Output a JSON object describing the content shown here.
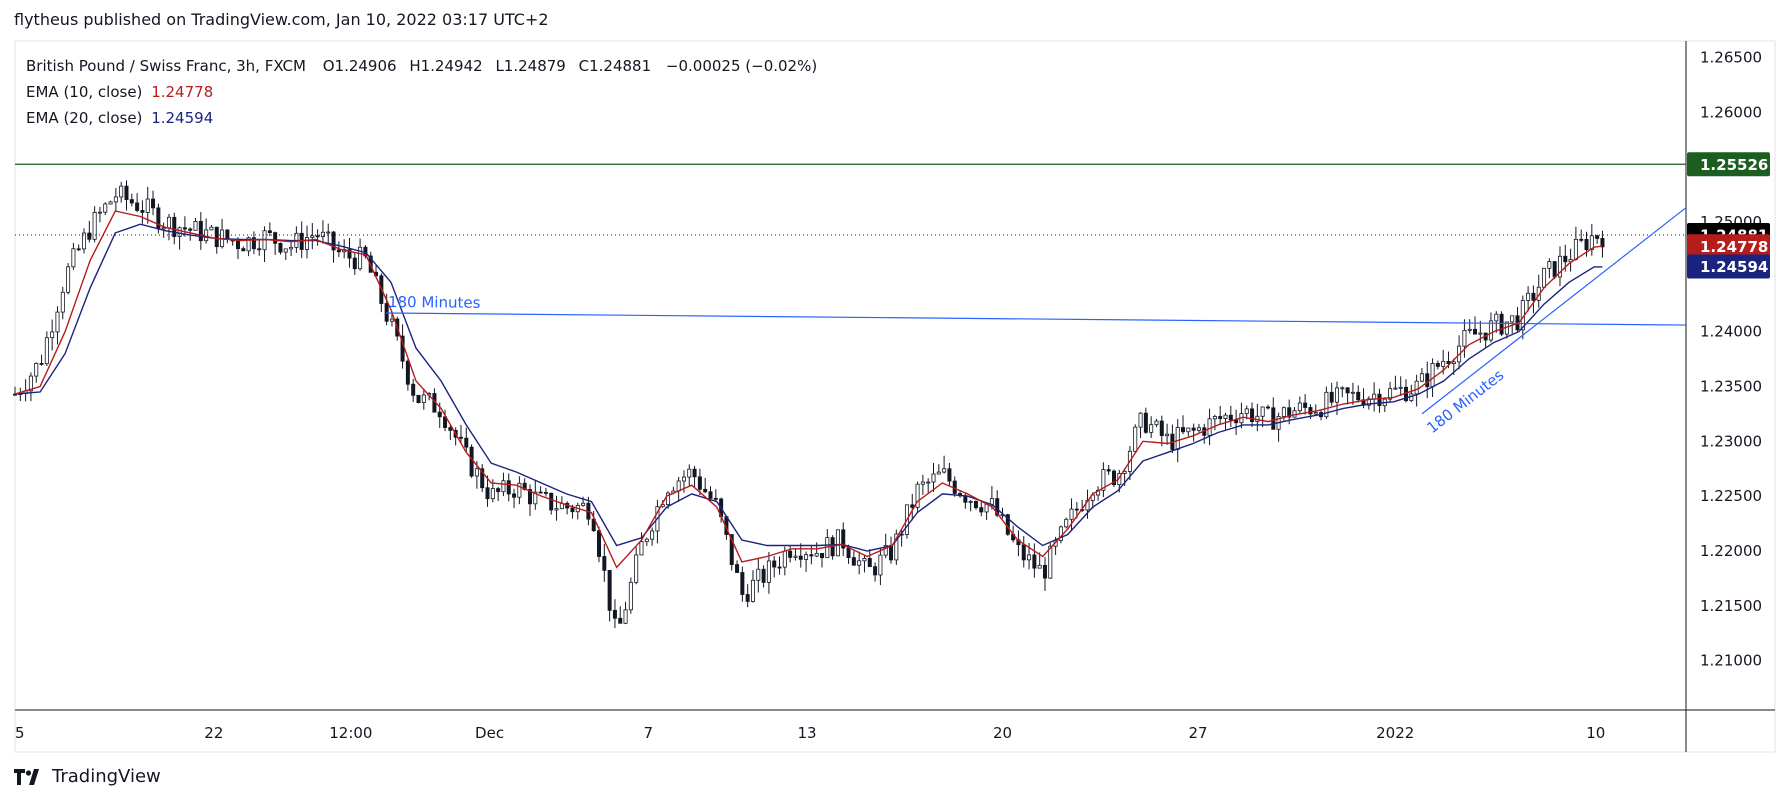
{
  "header": {
    "publisher_line": "flytheus published on TradingView.com, Jan 10, 2022 03:17 UTC+2"
  },
  "legend": {
    "symbol": "British Pound / Swiss Franc, 3h, FXCM",
    "ohlc": {
      "o_label": "O",
      "o": "1.24906",
      "h_label": "H",
      "h": "1.24942",
      "l_label": "L",
      "l": "1.24879",
      "c_label": "C",
      "c": "1.24881",
      "change": "−0.00025 (−0.02%)"
    },
    "ema10": {
      "label": "EMA (10, close)",
      "value": "1.24778"
    },
    "ema20": {
      "label": "EMA (20, close)",
      "value": "1.24594"
    }
  },
  "footer": {
    "brand": "TradingView"
  },
  "colors": {
    "candle": "#131722",
    "ema10": "#b71c1c",
    "ema20": "#1a237e",
    "trendline": "#2962ff",
    "resistance": "#1b5e20",
    "last_price_bg": "#000000"
  },
  "chart_data": {
    "type": "candlestick",
    "symbol": "GBPCHF",
    "timeframe": "3h",
    "ylim": [
      1.2055,
      1.2665
    ],
    "y_ticks": [
      "1.26500",
      "1.26000",
      "1.25000",
      "1.24000",
      "1.23500",
      "1.23000",
      "1.22500",
      "1.22000",
      "1.21500",
      "1.21000"
    ],
    "x_ticks": [
      {
        "label": "5",
        "pos": 0.0
      },
      {
        "label": "22",
        "pos": 0.119
      },
      {
        "label": "12:00",
        "pos": 0.201
      },
      {
        "label": "Dec",
        "pos": 0.284
      },
      {
        "label": "7",
        "pos": 0.379
      },
      {
        "label": "13",
        "pos": 0.474
      },
      {
        "label": "20",
        "pos": 0.591
      },
      {
        "label": "27",
        "pos": 0.708
      },
      {
        "label": "2022",
        "pos": 0.826
      },
      {
        "label": "10",
        "pos": 0.946
      }
    ],
    "price_badges": [
      {
        "name": "resistance",
        "value": "1.25526",
        "num": 1.25526,
        "color": "#1b5e20"
      },
      {
        "name": "last-close",
        "value": "1.24881",
        "num": 1.24881,
        "color": "#000000"
      },
      {
        "name": "ema10",
        "value": "1.24778",
        "num": 1.24778,
        "color": "#b71c1c"
      },
      {
        "name": "ema20",
        "value": "1.24594",
        "num": 1.24594,
        "color": "#1a237e"
      }
    ],
    "resistance_level": 1.25526,
    "last_close": 1.24881,
    "trend_lines": [
      {
        "name": "horizontal-trendline",
        "label": "180 Minutes",
        "x1": 0.222,
        "y1": 1.2417,
        "x2": 1.0,
        "y2": 1.2406
      },
      {
        "name": "rising-trendline",
        "label": "180 Minutes",
        "x1": 0.842,
        "y1": 1.2325,
        "x2": 1.0,
        "y2": 1.2513
      }
    ],
    "close_path": [
      [
        0.0,
        1.2343
      ],
      [
        0.015,
        1.2372
      ],
      [
        0.03,
        1.245
      ],
      [
        0.045,
        1.2495
      ],
      [
        0.06,
        1.2525
      ],
      [
        0.075,
        1.2515
      ],
      [
        0.09,
        1.25
      ],
      [
        0.105,
        1.2493
      ],
      [
        0.12,
        1.2487
      ],
      [
        0.135,
        1.2481
      ],
      [
        0.15,
        1.2487
      ],
      [
        0.165,
        1.2478
      ],
      [
        0.18,
        1.249
      ],
      [
        0.195,
        1.247
      ],
      [
        0.21,
        1.2465
      ],
      [
        0.225,
        1.2405
      ],
      [
        0.24,
        1.234
      ],
      [
        0.255,
        1.233
      ],
      [
        0.27,
        1.2285
      ],
      [
        0.285,
        1.225
      ],
      [
        0.3,
        1.2258
      ],
      [
        0.315,
        1.2245
      ],
      [
        0.33,
        1.224
      ],
      [
        0.345,
        1.224
      ],
      [
        0.36,
        1.212
      ],
      [
        0.375,
        1.2205
      ],
      [
        0.39,
        1.226
      ],
      [
        0.405,
        1.2272
      ],
      [
        0.42,
        1.224
      ],
      [
        0.435,
        1.216
      ],
      [
        0.45,
        1.218
      ],
      [
        0.465,
        1.2205
      ],
      [
        0.48,
        1.22
      ],
      [
        0.495,
        1.221
      ],
      [
        0.51,
        1.218
      ],
      [
        0.525,
        1.22
      ],
      [
        0.54,
        1.2255
      ],
      [
        0.555,
        1.227
      ],
      [
        0.57,
        1.225
      ],
      [
        0.585,
        1.224
      ],
      [
        0.6,
        1.22
      ],
      [
        0.615,
        1.218
      ],
      [
        0.63,
        1.2225
      ],
      [
        0.645,
        1.2262
      ],
      [
        0.66,
        1.227
      ],
      [
        0.675,
        1.232
      ],
      [
        0.69,
        1.23
      ],
      [
        0.705,
        1.2308
      ],
      [
        0.72,
        1.232
      ],
      [
        0.735,
        1.2328
      ],
      [
        0.75,
        1.232
      ],
      [
        0.765,
        1.2328
      ],
      [
        0.78,
        1.2332
      ],
      [
        0.795,
        1.234
      ],
      [
        0.81,
        1.2342
      ],
      [
        0.825,
        1.2345
      ],
      [
        0.84,
        1.235
      ],
      [
        0.855,
        1.2375
      ],
      [
        0.87,
        1.2395
      ],
      [
        0.885,
        1.2405
      ],
      [
        0.9,
        1.2412
      ],
      [
        0.915,
        1.245
      ],
      [
        0.93,
        1.247
      ],
      [
        0.945,
        1.2488
      ],
      [
        0.95,
        1.2488
      ]
    ],
    "ema10_path": [
      [
        0.0,
        1.2343
      ],
      [
        0.015,
        1.235
      ],
      [
        0.03,
        1.24
      ],
      [
        0.045,
        1.2465
      ],
      [
        0.06,
        1.251
      ],
      [
        0.075,
        1.2505
      ],
      [
        0.09,
        1.2495
      ],
      [
        0.105,
        1.249
      ],
      [
        0.12,
        1.2485
      ],
      [
        0.135,
        1.2483
      ],
      [
        0.15,
        1.2484
      ],
      [
        0.165,
        1.2482
      ],
      [
        0.18,
        1.2484
      ],
      [
        0.195,
        1.2475
      ],
      [
        0.21,
        1.247
      ],
      [
        0.225,
        1.242
      ],
      [
        0.24,
        1.2355
      ],
      [
        0.255,
        1.233
      ],
      [
        0.27,
        1.229
      ],
      [
        0.285,
        1.2262
      ],
      [
        0.3,
        1.226
      ],
      [
        0.315,
        1.225
      ],
      [
        0.33,
        1.2242
      ],
      [
        0.345,
        1.2235
      ],
      [
        0.36,
        1.2185
      ],
      [
        0.375,
        1.221
      ],
      [
        0.39,
        1.225
      ],
      [
        0.405,
        1.226
      ],
      [
        0.42,
        1.224
      ],
      [
        0.435,
        1.219
      ],
      [
        0.45,
        1.2195
      ],
      [
        0.465,
        1.2202
      ],
      [
        0.48,
        1.2202
      ],
      [
        0.495,
        1.2206
      ],
      [
        0.51,
        1.2195
      ],
      [
        0.525,
        1.2205
      ],
      [
        0.54,
        1.2245
      ],
      [
        0.555,
        1.2262
      ],
      [
        0.57,
        1.2252
      ],
      [
        0.585,
        1.224
      ],
      [
        0.6,
        1.221
      ],
      [
        0.615,
        1.2195
      ],
      [
        0.63,
        1.222
      ],
      [
        0.645,
        1.2252
      ],
      [
        0.66,
        1.2265
      ],
      [
        0.675,
        1.23
      ],
      [
        0.69,
        1.2298
      ],
      [
        0.705,
        1.2305
      ],
      [
        0.72,
        1.2315
      ],
      [
        0.735,
        1.2322
      ],
      [
        0.75,
        1.2318
      ],
      [
        0.765,
        1.2324
      ],
      [
        0.78,
        1.2328
      ],
      [
        0.795,
        1.2334
      ],
      [
        0.81,
        1.2338
      ],
      [
        0.825,
        1.234
      ],
      [
        0.84,
        1.2348
      ],
      [
        0.855,
        1.2365
      ],
      [
        0.87,
        1.2388
      ],
      [
        0.885,
        1.24
      ],
      [
        0.9,
        1.2408
      ],
      [
        0.915,
        1.244
      ],
      [
        0.93,
        1.2462
      ],
      [
        0.945,
        1.2477
      ],
      [
        0.95,
        1.2478
      ]
    ],
    "ema20_path": [
      [
        0.0,
        1.2343
      ],
      [
        0.015,
        1.2345
      ],
      [
        0.03,
        1.238
      ],
      [
        0.045,
        1.244
      ],
      [
        0.06,
        1.249
      ],
      [
        0.075,
        1.2498
      ],
      [
        0.09,
        1.2492
      ],
      [
        0.105,
        1.2488
      ],
      [
        0.12,
        1.2485
      ],
      [
        0.135,
        1.2484
      ],
      [
        0.15,
        1.2484
      ],
      [
        0.165,
        1.2483
      ],
      [
        0.18,
        1.2483
      ],
      [
        0.195,
        1.2478
      ],
      [
        0.21,
        1.2472
      ],
      [
        0.225,
        1.2445
      ],
      [
        0.24,
        1.2385
      ],
      [
        0.255,
        1.2355
      ],
      [
        0.27,
        1.2315
      ],
      [
        0.285,
        1.228
      ],
      [
        0.3,
        1.2272
      ],
      [
        0.315,
        1.2262
      ],
      [
        0.33,
        1.2252
      ],
      [
        0.345,
        1.2245
      ],
      [
        0.36,
        1.2205
      ],
      [
        0.375,
        1.2212
      ],
      [
        0.39,
        1.224
      ],
      [
        0.405,
        1.2252
      ],
      [
        0.42,
        1.2245
      ],
      [
        0.435,
        1.221
      ],
      [
        0.45,
        1.2205
      ],
      [
        0.465,
        1.2205
      ],
      [
        0.48,
        1.2205
      ],
      [
        0.495,
        1.2206
      ],
      [
        0.51,
        1.22
      ],
      [
        0.525,
        1.2205
      ],
      [
        0.54,
        1.2235
      ],
      [
        0.555,
        1.2252
      ],
      [
        0.57,
        1.225
      ],
      [
        0.585,
        1.2242
      ],
      [
        0.6,
        1.2222
      ],
      [
        0.615,
        1.2205
      ],
      [
        0.63,
        1.2215
      ],
      [
        0.645,
        1.224
      ],
      [
        0.66,
        1.2255
      ],
      [
        0.675,
        1.2282
      ],
      [
        0.69,
        1.229
      ],
      [
        0.705,
        1.2298
      ],
      [
        0.72,
        1.2308
      ],
      [
        0.735,
        1.2315
      ],
      [
        0.75,
        1.2315
      ],
      [
        0.765,
        1.232
      ],
      [
        0.78,
        1.2324
      ],
      [
        0.795,
        1.233
      ],
      [
        0.81,
        1.2334
      ],
      [
        0.825,
        1.2336
      ],
      [
        0.84,
        1.2343
      ],
      [
        0.855,
        1.2355
      ],
      [
        0.87,
        1.2375
      ],
      [
        0.885,
        1.239
      ],
      [
        0.9,
        1.24
      ],
      [
        0.915,
        1.2425
      ],
      [
        0.93,
        1.2445
      ],
      [
        0.945,
        1.2459
      ],
      [
        0.95,
        1.2459
      ]
    ]
  }
}
